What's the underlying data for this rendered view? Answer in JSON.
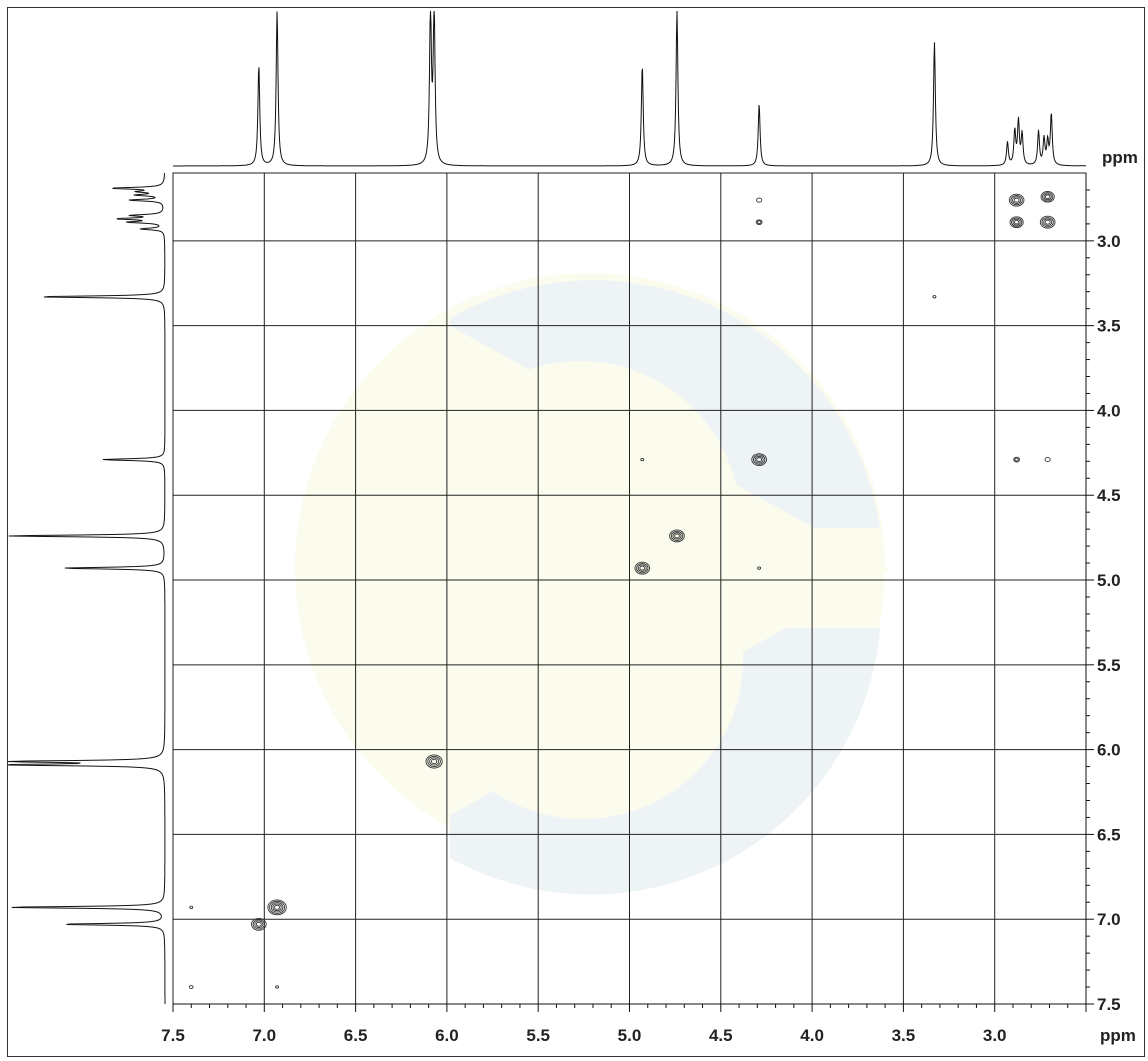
{
  "chart_data": {
    "type": "contour",
    "title": "",
    "xlabel": "ppm",
    "ylabel": "ppm",
    "xlim": [
      7.5,
      2.5
    ],
    "ylim": [
      2.6,
      7.5
    ],
    "grid": true,
    "x_ticks": [
      7.5,
      7.0,
      6.5,
      6.0,
      5.5,
      5.0,
      4.5,
      4.0,
      3.5,
      3.0
    ],
    "x_tick_labels": [
      "7.5",
      "7.0",
      "6.5",
      "6.0",
      "5.5",
      "5.0",
      "4.5",
      "4.0",
      "3.5",
      "3.0"
    ],
    "y_ticks": [
      3.0,
      3.5,
      4.0,
      4.5,
      5.0,
      5.5,
      6.0,
      6.5,
      7.0,
      7.5
    ],
    "y_tick_labels": [
      "3.0",
      "3.5",
      "4.0",
      "4.5",
      "5.0",
      "5.5",
      "6.0",
      "6.5",
      "7.0",
      "7.5"
    ],
    "projection_peaks": [
      {
        "shift": 7.03,
        "intensity": 0.65
      },
      {
        "shift": 6.93,
        "intensity": 1.0
      },
      {
        "shift": 6.09,
        "intensity": 1.0
      },
      {
        "shift": 6.07,
        "intensity": 1.0
      },
      {
        "shift": 4.93,
        "intensity": 0.65
      },
      {
        "shift": 4.74,
        "intensity": 1.0
      },
      {
        "shift": 4.29,
        "intensity": 0.4
      },
      {
        "shift": 3.33,
        "intensity": 0.8
      },
      {
        "shift": 2.93,
        "intensity": 0.15
      },
      {
        "shift": 2.89,
        "intensity": 0.22
      },
      {
        "shift": 2.87,
        "intensity": 0.28
      },
      {
        "shift": 2.85,
        "intensity": 0.2
      },
      {
        "shift": 2.76,
        "intensity": 0.22
      },
      {
        "shift": 2.73,
        "intensity": 0.17
      },
      {
        "shift": 2.71,
        "intensity": 0.15
      },
      {
        "shift": 2.69,
        "intensity": 0.33
      }
    ],
    "cross_peaks": [
      {
        "x": 7.03,
        "y": 7.03,
        "size": 2.0
      },
      {
        "x": 6.93,
        "y": 6.93,
        "size": 2.5
      },
      {
        "x": 6.07,
        "y": 6.07,
        "size": 2.2
      },
      {
        "x": 4.93,
        "y": 4.93,
        "size": 2.0
      },
      {
        "x": 4.74,
        "y": 4.74,
        "size": 2.0
      },
      {
        "x": 4.29,
        "y": 4.29,
        "size": 2.0
      },
      {
        "x": 2.88,
        "y": 2.76,
        "size": 2.0
      },
      {
        "x": 2.71,
        "y": 2.74,
        "size": 1.8
      },
      {
        "x": 2.88,
        "y": 2.89,
        "size": 1.8
      },
      {
        "x": 2.71,
        "y": 2.89,
        "size": 2.0
      },
      {
        "x": 4.29,
        "y": 2.76,
        "size": 0.7
      },
      {
        "x": 4.29,
        "y": 2.89,
        "size": 0.8
      },
      {
        "x": 2.88,
        "y": 4.29,
        "size": 0.8
      },
      {
        "x": 2.71,
        "y": 4.29,
        "size": 0.7
      },
      {
        "x": 4.93,
        "y": 4.29,
        "size": 0.4
      },
      {
        "x": 4.29,
        "y": 4.93,
        "size": 0.4
      },
      {
        "x": 3.33,
        "y": 3.33,
        "size": 0.4
      },
      {
        "x": 7.4,
        "y": 6.93,
        "size": 0.4
      },
      {
        "x": 7.4,
        "y": 7.4,
        "size": 0.5
      },
      {
        "x": 6.93,
        "y": 7.4,
        "size": 0.4
      }
    ]
  },
  "colors": {
    "line": "#111111",
    "grid": "#222222",
    "watermark_blue": "#eef3f6",
    "watermark_yellow": "#fbfbee"
  }
}
